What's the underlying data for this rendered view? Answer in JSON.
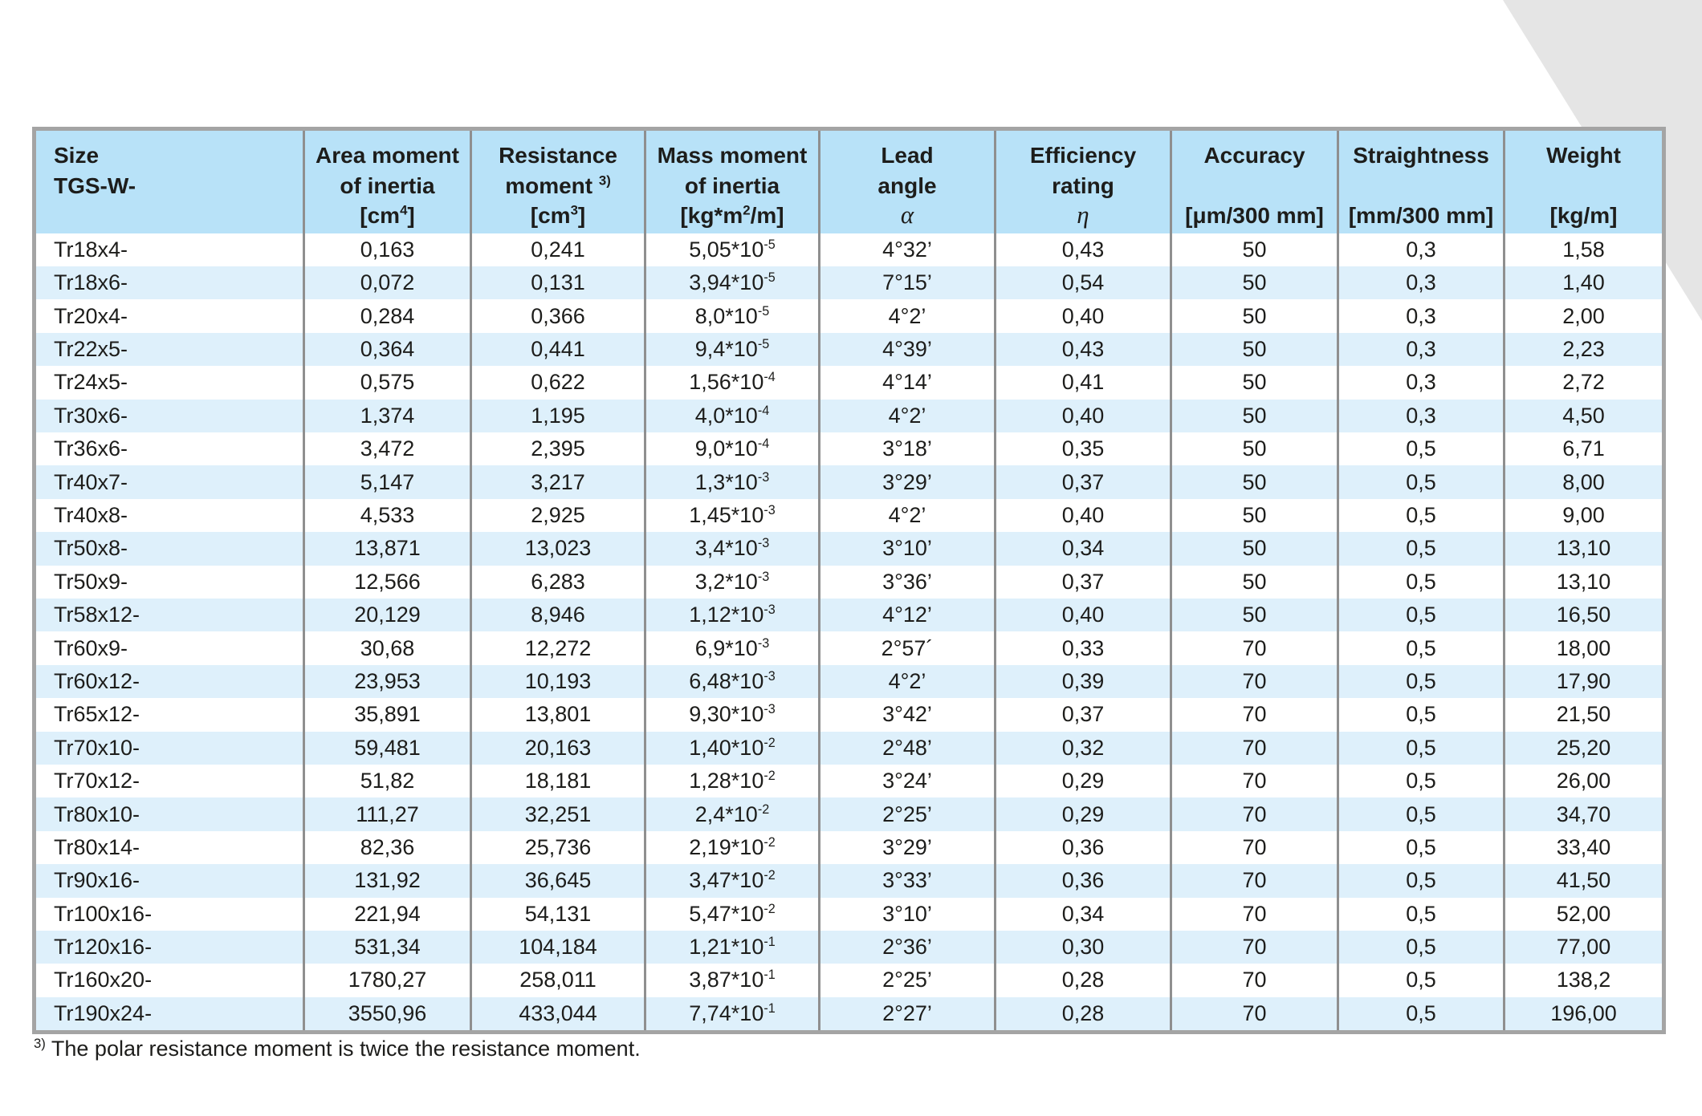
{
  "colors": {
    "header_bg": "#b8e2f8",
    "row_alt_bg": "#def0fb",
    "grid_line": "#8f8f8f",
    "outer_border": "#a4a4a4",
    "corner_wedge": "#e5e5e5",
    "text": "#1d1d1b"
  },
  "table": {
    "columns": [
      {
        "id": "size",
        "lines": [
          "Size",
          "TGS-W-"
        ],
        "unit": "",
        "align": "left"
      },
      {
        "id": "area-moment",
        "lines": [
          "Area moment",
          "of inertia"
        ],
        "unit": "[cm^{4}]"
      },
      {
        "id": "resistance-moment",
        "lines": [
          "Resistance",
          "moment ^{3)}"
        ],
        "unit": "[cm^{3}]"
      },
      {
        "id": "mass-moment",
        "lines": [
          "Mass moment",
          "of inertia"
        ],
        "unit": "[kg*m^{2}/m]"
      },
      {
        "id": "lead-angle",
        "lines": [
          "Lead",
          "angle"
        ],
        "unit": "α",
        "unit_greek": true
      },
      {
        "id": "efficiency",
        "lines": [
          "Efficiency",
          "rating"
        ],
        "unit": "η",
        "unit_greek": true
      },
      {
        "id": "accuracy",
        "lines": [
          "Accuracy"
        ],
        "unit": "[μm/300 mm]"
      },
      {
        "id": "straightness",
        "lines": [
          "Straightness"
        ],
        "unit": "[mm/300 mm]"
      },
      {
        "id": "weight",
        "lines": [
          "Weight"
        ],
        "unit": "[kg/m]"
      }
    ],
    "rows": [
      [
        "Tr18x4-",
        "0,163",
        "0,241",
        "5,05*10^{-5}",
        "4°32’",
        "0,43",
        "50",
        "0,3",
        "1,58"
      ],
      [
        "Tr18x6-",
        "0,072",
        "0,131",
        "3,94*10^{-5}",
        "7°15’",
        "0,54",
        "50",
        "0,3",
        "1,40"
      ],
      [
        "Tr20x4-",
        "0,284",
        "0,366",
        "8,0*10^{-5}",
        "4°2’",
        "0,40",
        "50",
        "0,3",
        "2,00"
      ],
      [
        "Tr22x5-",
        "0,364",
        "0,441",
        "9,4*10^{-5}",
        "4°39’",
        "0,43",
        "50",
        "0,3",
        "2,23"
      ],
      [
        "Tr24x5-",
        "0,575",
        "0,622",
        "1,56*10^{-4}",
        "4°14’",
        "0,41",
        "50",
        "0,3",
        "2,72"
      ],
      [
        "Tr30x6-",
        "1,374",
        "1,195",
        "4,0*10^{-4}",
        "4°2’",
        "0,40",
        "50",
        "0,3",
        "4,50"
      ],
      [
        "Tr36x6-",
        "3,472",
        "2,395",
        "9,0*10^{-4}",
        "3°18’",
        "0,35",
        "50",
        "0,5",
        "6,71"
      ],
      [
        "Tr40x7-",
        "5,147",
        "3,217",
        "1,3*10^{-3}",
        "3°29’",
        "0,37",
        "50",
        "0,5",
        "8,00"
      ],
      [
        "Tr40x8-",
        "4,533",
        "2,925",
        "1,45*10^{-3}",
        "4°2’",
        "0,40",
        "50",
        "0,5",
        "9,00"
      ],
      [
        "Tr50x8-",
        "13,871",
        "13,023",
        "3,4*10^{-3}",
        "3°10’",
        "0,34",
        "50",
        "0,5",
        "13,10"
      ],
      [
        "Tr50x9-",
        "12,566",
        "6,283",
        "3,2*10^{-3}",
        "3°36’",
        "0,37",
        "50",
        "0,5",
        "13,10"
      ],
      [
        "Tr58x12-",
        "20,129",
        "8,946",
        "1,12*10^{-3}",
        "4°12’",
        "0,40",
        "50",
        "0,5",
        "16,50"
      ],
      [
        "Tr60x9-",
        "30,68",
        "12,272",
        "6,9*10^{-3}",
        "2°57´",
        "0,33",
        "70",
        "0,5",
        "18,00"
      ],
      [
        "Tr60x12-",
        "23,953",
        "10,193",
        "6,48*10^{-3}",
        "4°2’",
        "0,39",
        "70",
        "0,5",
        "17,90"
      ],
      [
        "Tr65x12-",
        "35,891",
        "13,801",
        "9,30*10^{-3}",
        "3°42’",
        "0,37",
        "70",
        "0,5",
        "21,50"
      ],
      [
        "Tr70x10-",
        "59,481",
        "20,163",
        "1,40*10^{-2}",
        "2°48’",
        "0,32",
        "70",
        "0,5",
        "25,20"
      ],
      [
        "Tr70x12-",
        "51,82",
        "18,181",
        "1,28*10^{-2}",
        "3°24’",
        "0,29",
        "70",
        "0,5",
        "26,00"
      ],
      [
        "Tr80x10-",
        "111,27",
        "32,251",
        "2,4*10^{-2}",
        "2°25’",
        "0,29",
        "70",
        "0,5",
        "34,70"
      ],
      [
        "Tr80x14-",
        "82,36",
        "25,736",
        "2,19*10^{-2}",
        "3°29’",
        "0,36",
        "70",
        "0,5",
        "33,40"
      ],
      [
        "Tr90x16-",
        "131,92",
        "36,645",
        "3,47*10^{-2}",
        "3°33’",
        "0,36",
        "70",
        "0,5",
        "41,50"
      ],
      [
        "Tr100x16-",
        "221,94",
        "54,131",
        "5,47*10^{-2}",
        "3°10’",
        "0,34",
        "70",
        "0,5",
        "52,00"
      ],
      [
        "Tr120x16-",
        "531,34",
        "104,184",
        "1,21*10^{-1}",
        "2°36’",
        "0,30",
        "70",
        "0,5",
        "77,00"
      ],
      [
        "Tr160x20-",
        "1780,27",
        "258,011",
        "3,87*10^{-1}",
        "2°25’",
        "0,28",
        "70",
        "0,5",
        "138,2"
      ],
      [
        "Tr190x24-",
        "3550,96",
        "433,044",
        "7,74*10^{-1}",
        "2°27’",
        "0,28",
        "70",
        "0,5",
        "196,00"
      ]
    ]
  },
  "footnote": {
    "marker": "3)",
    "text": "The polar resistance moment is twice the resistance moment."
  }
}
